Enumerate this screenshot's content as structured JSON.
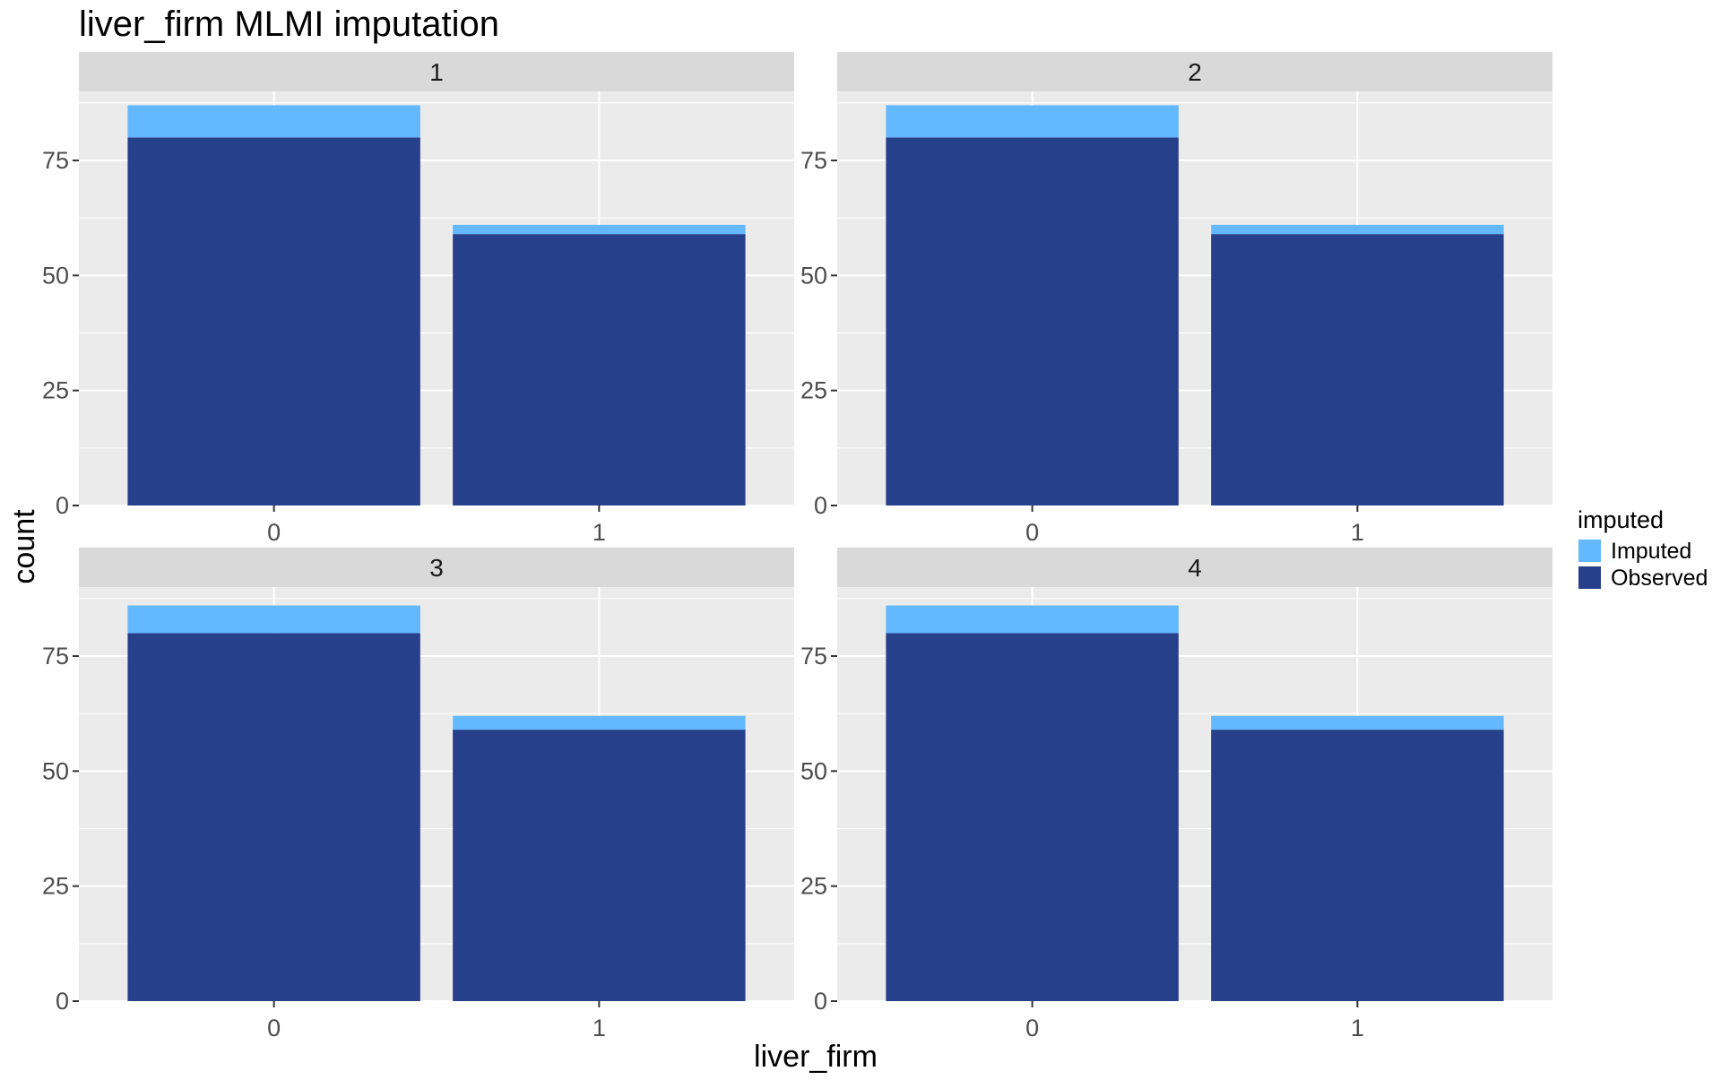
{
  "chart_data": {
    "type": "bar",
    "stacked": true,
    "title": "liver_firm MLMI imputation",
    "xlabel": "liver_firm",
    "ylabel": "count",
    "ylim": [
      0,
      90
    ],
    "yticks": [
      0,
      25,
      50,
      75
    ],
    "categories": [
      "0",
      "1"
    ],
    "legend": {
      "title": "imputed",
      "position": "right",
      "entries": [
        {
          "name": "Imputed",
          "color": "#63b8ff"
        },
        {
          "name": "Observed",
          "color": "#27408b"
        }
      ]
    },
    "panel_background": "#ebebeb",
    "strip_background": "#d9d9d9",
    "panels": [
      {
        "label": "1",
        "series": [
          {
            "name": "Observed",
            "values": [
              80,
              59
            ]
          },
          {
            "name": "Imputed",
            "values": [
              7,
              2
            ]
          }
        ]
      },
      {
        "label": "2",
        "series": [
          {
            "name": "Observed",
            "values": [
              80,
              59
            ]
          },
          {
            "name": "Imputed",
            "values": [
              7,
              2
            ]
          }
        ]
      },
      {
        "label": "3",
        "series": [
          {
            "name": "Observed",
            "values": [
              80,
              59
            ]
          },
          {
            "name": "Imputed",
            "values": [
              6,
              3
            ]
          }
        ]
      },
      {
        "label": "4",
        "series": [
          {
            "name": "Observed",
            "values": [
              80,
              59
            ]
          },
          {
            "name": "Imputed",
            "values": [
              6,
              3
            ]
          }
        ]
      }
    ]
  }
}
